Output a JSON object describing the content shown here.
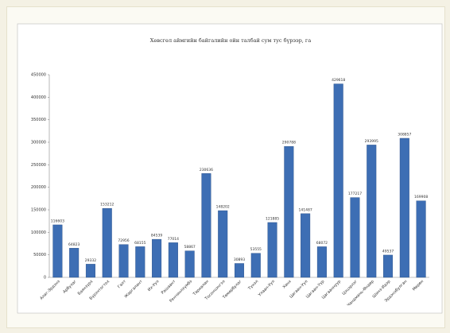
{
  "chart_data": {
    "type": "bar",
    "title": "Хөвсгөл аймгийн байгалийн ойн талбай сум тус бүрээр, га",
    "categories": [
      "Алаг-Эрдэнэ",
      "Арбулаг",
      "Баянзүрх",
      "Бүрэнтогтох",
      "Галт",
      "Жаргалант",
      "Их-Уул",
      "Рашаант",
      "Ренчинлхүмбэ",
      "Тариалан",
      "Тосонцэнгэл",
      "Төмөрбулаг",
      "Түнэл",
      "Улаан-Уул",
      "Ханх",
      "Цагаан-Уул",
      "Цагаан-Үүр",
      "Цагааннуур",
      "Цэцэрлэг",
      "Чандмань-Өндөр",
      "Шинэ-Идэр",
      "Эрдэнэбулган",
      "Мөрөн"
    ],
    "values": [
      116603,
      64823,
      29332,
      153212,
      72956,
      68155,
      84539,
      77014,
      58867,
      230636,
      148202,
      30893,
      53555,
      121885,
      290788,
      141487,
      68072,
      429618,
      177217,
      293995,
      49537,
      308857,
      169908
    ],
    "color": "#3d6eb4",
    "ylim": [
      0,
      450000
    ],
    "yticks": [
      0,
      50000,
      100000,
      150000,
      200000,
      250000,
      300000,
      350000,
      400000,
      450000
    ],
    "grid": false
  }
}
